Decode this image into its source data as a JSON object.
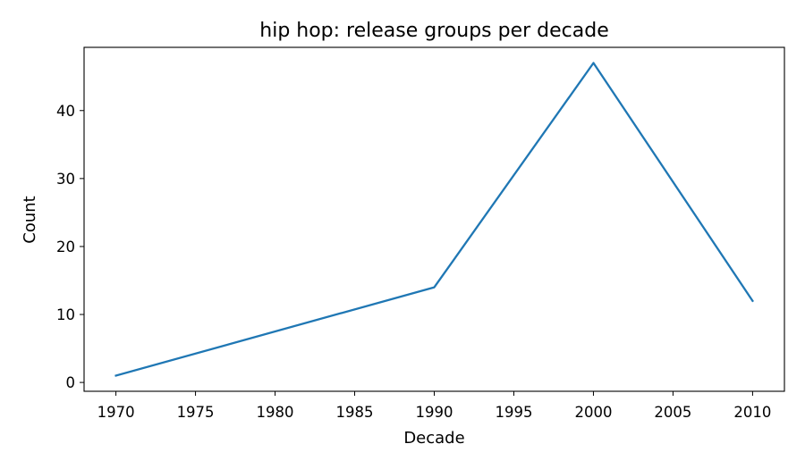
{
  "chart_data": {
    "type": "line",
    "title": "hip hop: release groups per decade",
    "xlabel": "Decade",
    "ylabel": "Count",
    "x": [
      1970,
      1990,
      2000,
      2010
    ],
    "series": [
      {
        "values": [
          1,
          14,
          47,
          12
        ],
        "color": "#1f77b4"
      }
    ],
    "xlim": [
      1968,
      2012
    ],
    "ylim": [
      -1.3,
      49.3
    ],
    "xticks": [
      1970,
      1975,
      1980,
      1985,
      1990,
      1995,
      2000,
      2005,
      2010
    ],
    "yticks": [
      0,
      10,
      20,
      30,
      40
    ],
    "grid": false,
    "legend": "none"
  }
}
